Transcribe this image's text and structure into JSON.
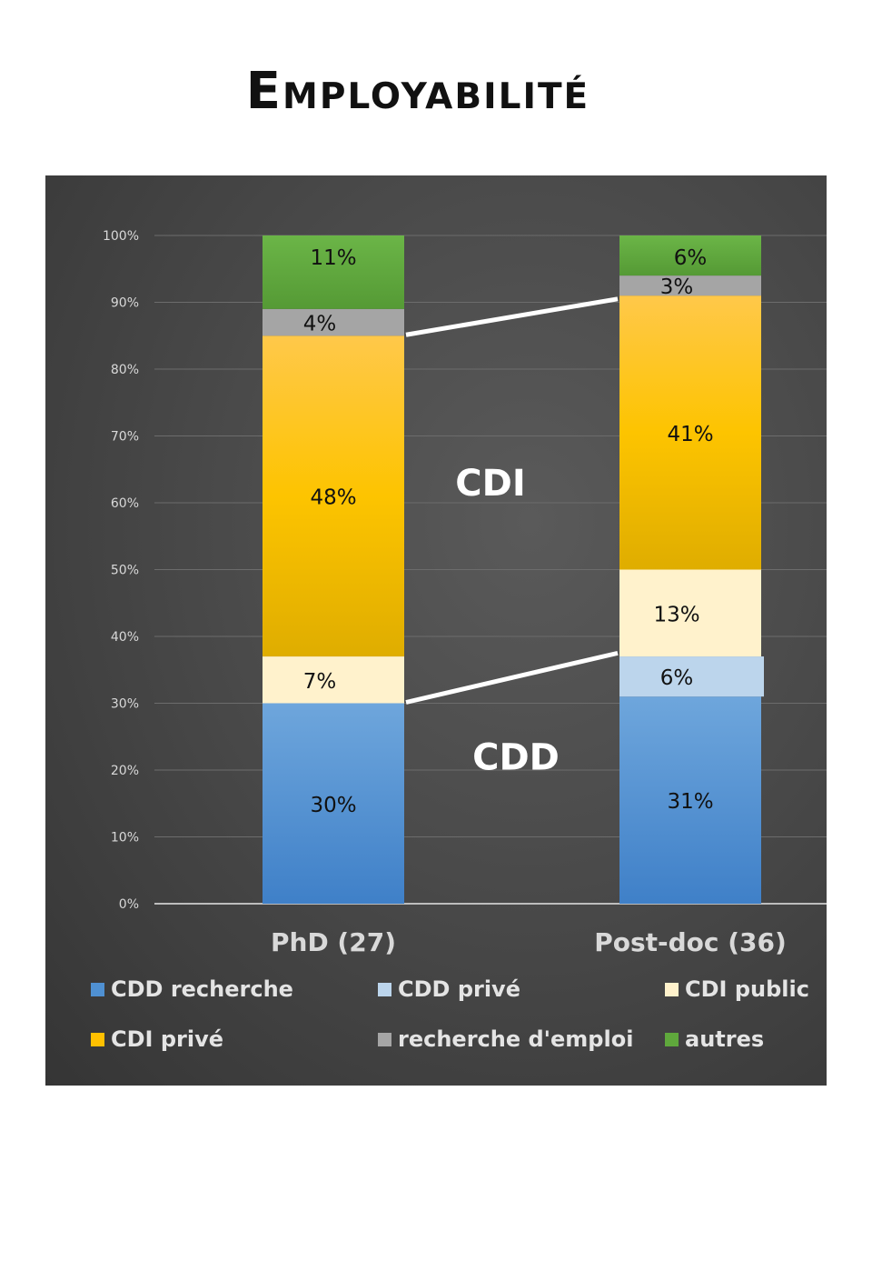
{
  "page_title": "Employabilité",
  "chart_data": {
    "type": "bar",
    "stacked": true,
    "categories": [
      "PhD (27)",
      "Post-doc (36)"
    ],
    "ylim": [
      0,
      100
    ],
    "y_ticks": [
      "0%",
      "10%",
      "20%",
      "30%",
      "40%",
      "50%",
      "60%",
      "70%",
      "80%",
      "90%",
      "100%"
    ],
    "grid": true,
    "legend_position": "bottom",
    "series": [
      {
        "name": "CDD recherche",
        "color": "#4f90d2",
        "values": [
          30,
          31
        ],
        "labels": [
          "30%",
          "31%"
        ],
        "label_color": "#111111"
      },
      {
        "name": "CDD privé",
        "color": "#bcd5ec",
        "values": [
          0,
          6
        ],
        "labels": [
          "",
          "6%"
        ],
        "label_color": "#111111"
      },
      {
        "name": "CDI public",
        "color": "#fff2cc",
        "values": [
          7,
          13
        ],
        "labels": [
          "7%",
          "13%"
        ],
        "label_color": "#111111"
      },
      {
        "name": "CDI privé",
        "color": "#ffc000",
        "values": [
          48,
          41
        ],
        "labels": [
          "48%",
          "41%"
        ],
        "label_color": "#111111"
      },
      {
        "name": "recherche d'emploi",
        "color": "#a5a5a5",
        "values": [
          4,
          3
        ],
        "labels": [
          "4%",
          "3%"
        ],
        "label_color": "#111111"
      },
      {
        "name": "autres",
        "color": "#5fa83c",
        "values": [
          11,
          6
        ],
        "labels": [
          "11%",
          "6%"
        ],
        "label_color": "#111111"
      }
    ],
    "annotations": [
      {
        "text": "CDI",
        "x_between": [
          0,
          1
        ],
        "y": 63
      },
      {
        "text": "CDD",
        "x_between": [
          0,
          1
        ],
        "y": 22
      }
    ],
    "connectors": [
      {
        "from_category": 0,
        "from_y": 85,
        "to_category": 1,
        "to_y": 90.5
      },
      {
        "from_category": 0,
        "from_y": 30,
        "to_category": 1,
        "to_y": 37.5
      }
    ]
  }
}
